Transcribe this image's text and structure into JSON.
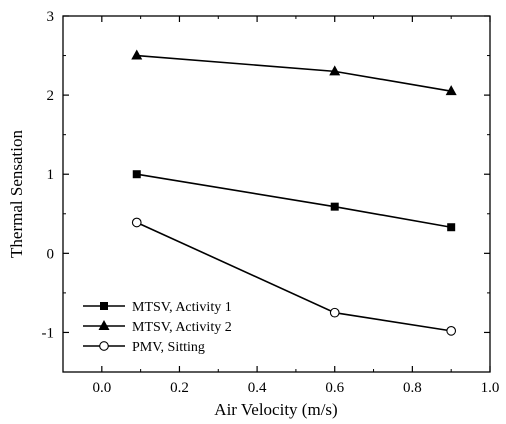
{
  "chart_data": {
    "type": "line",
    "xlabel": "Air Velocity (m/s)",
    "ylabel": "Thermal Sensation",
    "xlim": [
      -0.1,
      1.0
    ],
    "ylim": [
      -1.5,
      3.0
    ],
    "xticks": [
      0.0,
      0.2,
      0.4,
      0.6,
      0.8,
      1.0
    ],
    "xtick_labels": [
      "0.0",
      "0.2",
      "0.4",
      "0.6",
      "0.8",
      "1.0"
    ],
    "yticks": [
      -1,
      0,
      1,
      2,
      3
    ],
    "ytick_labels": [
      "-1",
      "0",
      "1",
      "2",
      "3"
    ],
    "grid": false,
    "legend_position": "bottom-left",
    "series": [
      {
        "name": "MTSV, Activity 1",
        "marker": "filled-square",
        "x": [
          0.09,
          0.6,
          0.9
        ],
        "y": [
          1.0,
          0.59,
          0.33
        ]
      },
      {
        "name": "MTSV, Activity 2",
        "marker": "filled-triangle",
        "x": [
          0.09,
          0.6,
          0.9
        ],
        "y": [
          2.5,
          2.3,
          2.05
        ]
      },
      {
        "name": "PMV, Sitting",
        "marker": "open-circle",
        "x": [
          0.09,
          0.6,
          0.9
        ],
        "y": [
          0.39,
          -0.75,
          -0.98
        ]
      }
    ]
  }
}
